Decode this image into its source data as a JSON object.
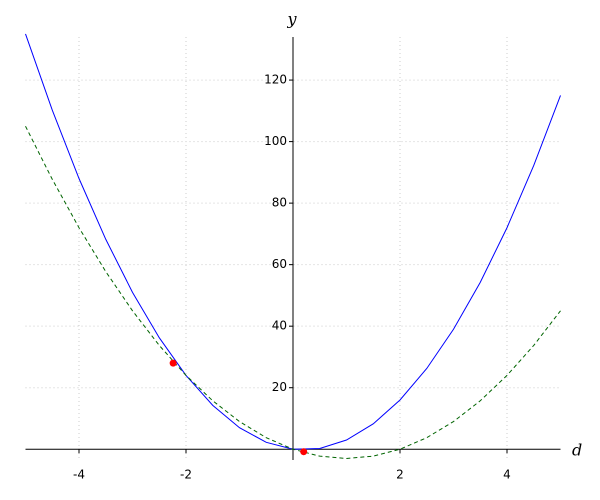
{
  "chart_data": {
    "type": "line",
    "x_label": "d",
    "y_label": "y",
    "xlim": [
      -5,
      5
    ],
    "ylim": [
      -3.5,
      134
    ],
    "xticks": [
      -4,
      -2,
      2,
      4
    ],
    "yticks": [
      20,
      40,
      60,
      80,
      100,
      120
    ],
    "grid": true,
    "x": [
      -5,
      -4.5,
      -4,
      -3.5,
      -3,
      -2.5,
      -2,
      -1.5,
      -1,
      -0.5,
      0,
      0.5,
      1,
      1.5,
      2,
      2.5,
      3,
      3.5,
      4,
      4.5,
      5
    ],
    "series": [
      {
        "color": "#0000ff",
        "dash": false,
        "values": [
          135,
          110.25,
          88,
          68.25,
          51,
          36.25,
          24,
          14.25,
          7,
          2.25,
          0,
          0.25,
          3,
          8.25,
          16,
          26.25,
          39,
          54.25,
          72,
          92.25,
          115
        ]
      },
      {
        "color": "#006400",
        "dash": true,
        "values": [
          105,
          87.75,
          72,
          57.75,
          45,
          33.75,
          24,
          15.75,
          9,
          3.75,
          0,
          -2.25,
          -3,
          -2.25,
          0,
          3.75,
          9,
          15.75,
          24,
          33.75,
          45
        ]
      }
    ],
    "points": {
      "color": "#ff0000",
      "x": [
        -2.24,
        0.2
      ],
      "values": [
        28,
        -0.8
      ]
    }
  }
}
